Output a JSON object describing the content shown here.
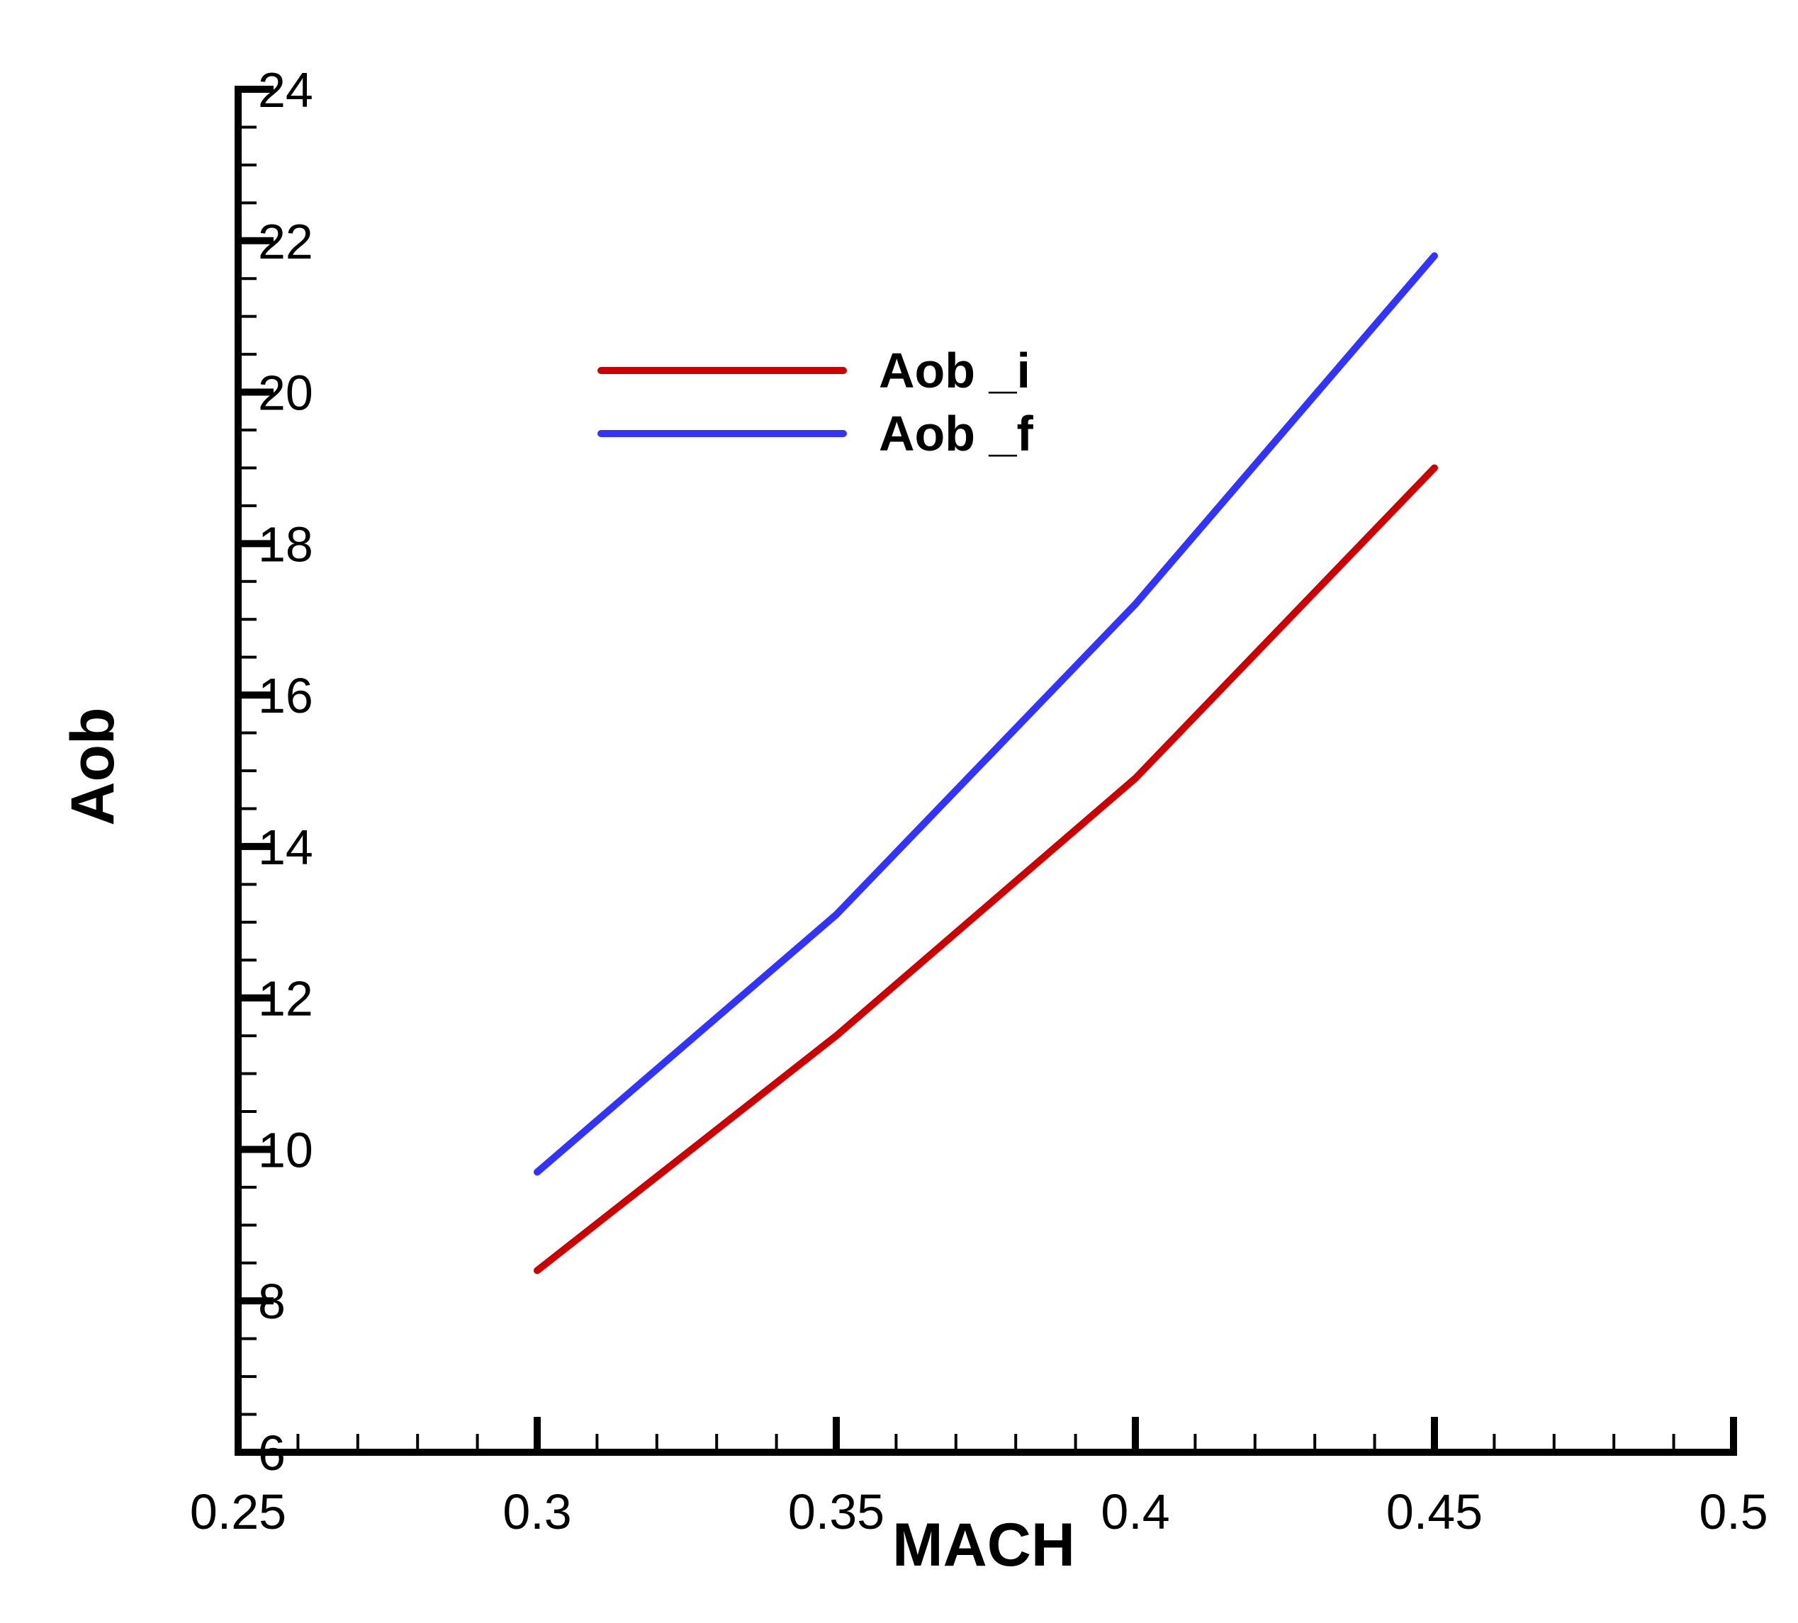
{
  "chart_data": {
    "type": "line",
    "xlabel": "MACH",
    "ylabel": "Aob",
    "xlim": [
      0.25,
      0.5
    ],
    "ylim": [
      6,
      24
    ],
    "xticks": [
      0.25,
      0.3,
      0.35,
      0.4,
      0.45,
      0.5
    ],
    "xtick_labels": [
      "0.25",
      "0.3",
      "0.35",
      "0.4",
      "0.45",
      "0.5"
    ],
    "yticks": [
      6,
      8,
      10,
      12,
      14,
      16,
      18,
      20,
      22,
      24
    ],
    "ytick_labels": [
      "6",
      "8",
      "10",
      "12",
      "14",
      "16",
      "18",
      "20",
      "22",
      "24"
    ],
    "x_minor_step": 0.01,
    "y_minor_step": 0.5,
    "grid": false,
    "legend_position": "top-left",
    "series": [
      {
        "name": "Aob _i",
        "color": "#cc0000",
        "x": [
          0.3,
          0.35,
          0.4,
          0.45
        ],
        "y": [
          8.4,
          11.5,
          14.9,
          19.0
        ]
      },
      {
        "name": "Aob _f",
        "color": "#3333ff",
        "x": [
          0.3,
          0.35,
          0.4,
          0.45
        ],
        "y": [
          9.7,
          13.1,
          17.2,
          21.8
        ]
      }
    ]
  }
}
